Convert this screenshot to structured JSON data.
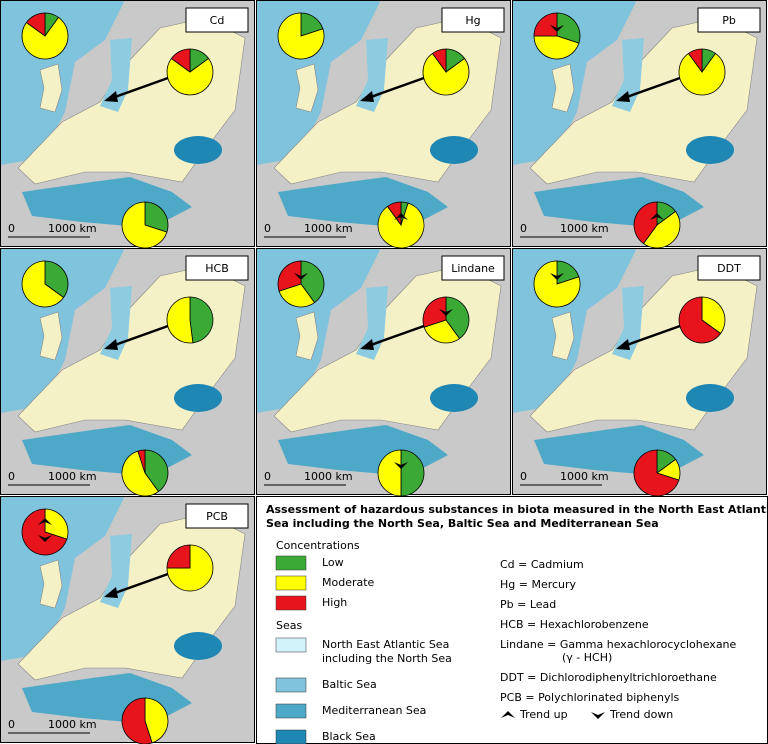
{
  "panels": [
    {
      "label": "Cd",
      "pies": [
        {
          "values": [
            10,
            75,
            15
          ],
          "trends": []
        },
        {
          "values": [
            15,
            70,
            15
          ],
          "trends": []
        },
        {
          "values": [
            30,
            70,
            0
          ],
          "trends": []
        }
      ]
    },
    {
      "label": "Hg",
      "pies": [
        {
          "values": [
            20,
            80,
            0
          ],
          "trends": []
        },
        {
          "values": [
            15,
            75,
            10
          ],
          "trends": []
        },
        {
          "values": [
            5,
            85,
            10
          ],
          "trends": [
            "up"
          ]
        }
      ]
    },
    {
      "label": "Pb",
      "pies": [
        {
          "values": [
            30,
            45,
            25
          ],
          "trends": [
            "down"
          ]
        },
        {
          "values": [
            10,
            80,
            10
          ],
          "trends": []
        },
        {
          "values": [
            15,
            45,
            40
          ],
          "trends": [
            "up"
          ]
        }
      ]
    },
    {
      "label": "HCB",
      "pies": [
        {
          "values": [
            35,
            65,
            0
          ],
          "trends": []
        },
        {
          "values": [
            48,
            52,
            0
          ],
          "trends": []
        },
        {
          "values": [
            40,
            55,
            5
          ],
          "trends": []
        }
      ]
    },
    {
      "label": "Lindane",
      "pies": [
        {
          "values": [
            40,
            30,
            30
          ],
          "trends": [
            "down"
          ]
        },
        {
          "values": [
            40,
            30,
            30
          ],
          "trends": [
            "down"
          ]
        },
        {
          "values": [
            50,
            50,
            0
          ],
          "trends": [
            "down"
          ]
        }
      ]
    },
    {
      "label": "DDT",
      "pies": [
        {
          "values": [
            20,
            80,
            0
          ],
          "trends": [
            "down"
          ]
        },
        {
          "values": [
            0,
            35,
            65
          ],
          "trends": []
        },
        {
          "values": [
            15,
            15,
            70
          ],
          "trends": []
        }
      ]
    },
    {
      "label": "PCB",
      "pies": [
        {
          "values": [
            0,
            30,
            70
          ],
          "trends": [
            "up",
            "down"
          ]
        },
        {
          "values": [
            0,
            75,
            25
          ],
          "trends": []
        },
        {
          "values": [
            0,
            45,
            55
          ],
          "trends": []
        }
      ]
    }
  ],
  "scale": {
    "start": "0",
    "end": "1000 km"
  },
  "legend": {
    "title": [
      "Assessment of hazardous substances in biota measured in the North East Atlantic",
      "Sea including the North Sea, Baltic Sea and Mediterranean Sea"
    ],
    "concentrations": {
      "heading": "Concentrations",
      "items": [
        {
          "label": "Low",
          "color": "#3aa935"
        },
        {
          "label": "Moderate",
          "color": "#ffff00"
        },
        {
          "label": "High",
          "color": "#e8141c"
        }
      ]
    },
    "seas": {
      "heading": "Seas",
      "items": [
        {
          "lines": [
            "North East Atlantic Sea",
            "including the North Sea"
          ],
          "color": "#d3f3fa"
        },
        {
          "lines": [
            "Baltic Sea"
          ],
          "color": "#7fc3dc"
        },
        {
          "lines": [
            "Mediterranean Sea"
          ],
          "color": "#4ea8c8"
        },
        {
          "lines": [
            "Black Sea"
          ],
          "color": "#1f87b3"
        }
      ]
    },
    "abbreviations": [
      {
        "lines": [
          "Cd = Cadmium"
        ]
      },
      {
        "lines": [
          "Hg = Mercury"
        ]
      },
      {
        "lines": [
          "Pb = Lead"
        ]
      },
      {
        "lines": [
          "HCB = Hexachlorobenzene"
        ]
      },
      {
        "lines": [
          "Lindane = Gamma hexachlorocyclohexane",
          "(γ - HCH)"
        ]
      },
      {
        "lines": [
          "DDT = Dichlorodiphenyltrichloroethane"
        ]
      },
      {
        "lines": [
          "PCB = Polychlorinated biphenyls"
        ]
      }
    ],
    "trends": [
      {
        "label": "Trend up",
        "direction": "up"
      },
      {
        "label": "Trend down",
        "direction": "down"
      }
    ]
  }
}
